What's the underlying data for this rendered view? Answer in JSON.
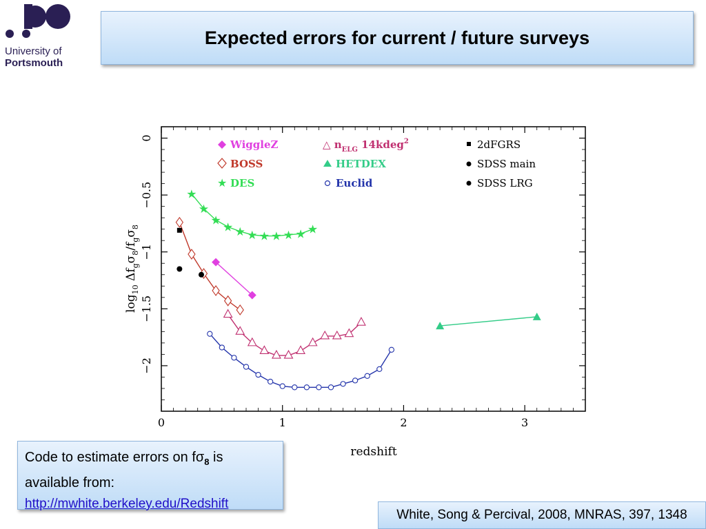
{
  "logo": {
    "line1": "University of",
    "line2": "Portsmouth"
  },
  "title": "Expected errors for current / future surveys",
  "code_box": {
    "text_a": "Code to estimate errors on fσ",
    "text_sub": "8",
    "text_b": " is",
    "text_line2": "available from:",
    "link": "http://mwhite.berkeley.edu/Redshift"
  },
  "reference": "White, Song & Percival, 2008, MNRAS, 397, 1348",
  "chart_data": {
    "type": "scatter",
    "xlabel": "redshift",
    "ylabel_parts": {
      "log": "log",
      "sub10": "10",
      "mid": "  Δf",
      "subg1": "g",
      "sigma1": "σ",
      "sub81": "8",
      "slash": "/f",
      "subg2": "g",
      "sigma2": "σ",
      "sub82": "8"
    },
    "xlim": [
      0,
      3.5
    ],
    "ylim": [
      -2.4,
      0.1
    ],
    "x_ticks": [
      0,
      1,
      2,
      3
    ],
    "x_tick_labels": [
      "0",
      "1",
      "2",
      "3"
    ],
    "y_ticks": [
      0,
      -0.5,
      -1,
      -1.5,
      -2
    ],
    "y_tick_labels": [
      "0",
      "−0.5",
      "−1",
      "−1.5",
      "−2"
    ],
    "grid": false,
    "legend": [
      {
        "label": "WiggleZ",
        "marker": "diamond-filled",
        "color": "#e040e0"
      },
      {
        "label": "BOSS",
        "marker": "diamond-open",
        "color": "#c0392b"
      },
      {
        "label": "DES",
        "marker": "star",
        "color": "#33dd55"
      },
      {
        "label_main": "△ n",
        "label_sub": "ELG",
        "label_rest": " 14kdeg",
        "label_sup": "2",
        "marker": "triangle-open",
        "color": "#c03070"
      },
      {
        "label": "HETDEX",
        "marker": "triangle-filled",
        "color": "#33cc88"
      },
      {
        "label": "Euclid",
        "marker": "circle-open",
        "color": "#2233aa"
      },
      {
        "label": "2dFGRS",
        "marker": "square",
        "color": "#000000"
      },
      {
        "label": "SDSS main",
        "marker": "dot",
        "color": "#000000"
      },
      {
        "label": "SDSS LRG",
        "marker": "dot",
        "color": "#000000"
      }
    ],
    "series": [
      {
        "name": "DES",
        "marker": "star",
        "color": "#33dd55",
        "line": true,
        "x": [
          0.25,
          0.35,
          0.45,
          0.55,
          0.65,
          0.75,
          0.85,
          0.95,
          1.05,
          1.15,
          1.25
        ],
        "y": [
          -0.49,
          -0.62,
          -0.72,
          -0.78,
          -0.82,
          -0.85,
          -0.86,
          -0.86,
          -0.85,
          -0.84,
          -0.8
        ]
      },
      {
        "name": "WiggleZ",
        "marker": "diamond-filled",
        "color": "#e040e0",
        "line": true,
        "x": [
          0.45,
          0.75
        ],
        "y": [
          -1.09,
          -1.38
        ]
      },
      {
        "name": "BOSS",
        "marker": "diamond-open",
        "color": "#c0392b",
        "line": true,
        "x": [
          0.15,
          0.25,
          0.35,
          0.45,
          0.55,
          0.65
        ],
        "y": [
          -0.74,
          -1.02,
          -1.19,
          -1.34,
          -1.43,
          -1.51
        ]
      },
      {
        "name": "ELG 14kdeg2",
        "marker": "triangle-open",
        "color": "#c03070",
        "line": true,
        "x": [
          0.55,
          0.65,
          0.75,
          0.85,
          0.95,
          1.05,
          1.15,
          1.25,
          1.35,
          1.45,
          1.55,
          1.65
        ],
        "y": [
          -1.55,
          -1.7,
          -1.8,
          -1.87,
          -1.91,
          -1.91,
          -1.87,
          -1.8,
          -1.74,
          -1.74,
          -1.72,
          -1.62
        ]
      },
      {
        "name": "Euclid",
        "marker": "circle-open",
        "color": "#2233aa",
        "line": true,
        "x": [
          0.4,
          0.5,
          0.6,
          0.7,
          0.8,
          0.9,
          1.0,
          1.1,
          1.2,
          1.3,
          1.4,
          1.5,
          1.6,
          1.7,
          1.8,
          1.9
        ],
        "y": [
          -1.72,
          -1.84,
          -1.93,
          -2.01,
          -2.08,
          -2.14,
          -2.18,
          -2.19,
          -2.19,
          -2.19,
          -2.19,
          -2.16,
          -2.13,
          -2.09,
          -2.03,
          -1.86
        ]
      },
      {
        "name": "HETDEX",
        "marker": "triangle-filled",
        "color": "#33cc88",
        "line": true,
        "x": [
          2.3,
          3.1
        ],
        "y": [
          -1.65,
          -1.57
        ]
      },
      {
        "name": "2dFGRS",
        "marker": "square",
        "color": "#000000",
        "line": false,
        "x": [
          0.15
        ],
        "y": [
          -0.81
        ]
      },
      {
        "name": "SDSS main",
        "marker": "dot",
        "color": "#000000",
        "line": false,
        "x": [
          0.15
        ],
        "y": [
          -1.15
        ]
      },
      {
        "name": "SDSS LRG",
        "marker": "dot",
        "color": "#000000",
        "line": false,
        "x": [
          0.33
        ],
        "y": [
          -1.2
        ]
      }
    ]
  }
}
